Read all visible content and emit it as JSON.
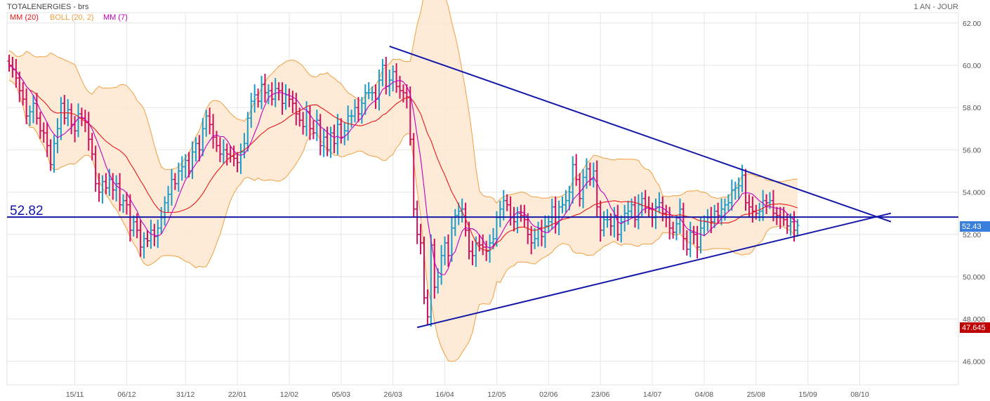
{
  "chart_data": {
    "type": "bar",
    "subtype": "ohlc",
    "title": "TOTALENERGIES - brs",
    "period_label": "1 AN - JOUR",
    "legend": [
      {
        "name": "MM (20)",
        "color": "#e8191a"
      },
      {
        "name": "BOLL (20, 2)",
        "color": "#f0a040"
      },
      {
        "name": "MM (7)",
        "color": "#c000c0"
      }
    ],
    "legend_placement": "top-left",
    "ylim": [
      45,
      63
    ],
    "y_ticks": [
      "46.000",
      "48.000",
      "50.000",
      "52.00",
      "54.000",
      "56.00",
      "58.00",
      "60.00",
      "62.00"
    ],
    "y_tick_values": [
      46,
      48,
      50,
      52,
      54,
      56,
      58,
      60,
      62
    ],
    "x_ticks": [
      "15/11",
      "06/12",
      "31/12",
      "22/01",
      "12/02",
      "05/03",
      "26/03",
      "16/04",
      "12/05",
      "02/06",
      "23/06",
      "14/07",
      "04/08",
      "25/08",
      "15/09",
      "08/10"
    ],
    "x_tick_index": [
      19,
      34,
      51,
      66,
      81,
      96,
      111,
      126,
      141,
      156,
      171,
      186,
      201,
      216,
      231,
      246
    ],
    "grid": true,
    "colors": {
      "up": "#1a9bc8",
      "down": "#cc1060",
      "trend": "#1418a8",
      "band_fill": "#fde8d0"
    },
    "price_levels": [
      {
        "label": "52.82",
        "value": 52.82
      },
      {
        "label": "52.43",
        "value": 52.43,
        "color": "#3a7fdc"
      },
      {
        "label": "47.645",
        "value": 47.645,
        "color": "#c00000"
      }
    ],
    "trendlines": [
      {
        "from": [
          110,
          60.9
        ],
        "to": [
          255,
          52.6
        ]
      },
      {
        "from": [
          118,
          47.6
        ],
        "to": [
          255,
          53.0
        ]
      }
    ],
    "series": [
      {
        "name": "close",
        "values": [
          60.0,
          59.8,
          59.4,
          58.8,
          58.4,
          57.6,
          57.8,
          58.2,
          57.5,
          56.9,
          56.8,
          56.2,
          55.3,
          56.3,
          57.0,
          58.2,
          57.5,
          57.9,
          57.2,
          56.9,
          57.7,
          57.5,
          57.3,
          56.5,
          55.8,
          54.4,
          54.0,
          54.5,
          54.2,
          54.6,
          54.1,
          54.4,
          53.4,
          53.6,
          53.4,
          52.2,
          52.6,
          52.2,
          51.4,
          51.8,
          51.7,
          52.2,
          51.9,
          52.3,
          52.8,
          53.5,
          53.9,
          54.6,
          54.4,
          55.0,
          55.2,
          55.5,
          55.0,
          55.9,
          56.3,
          56.0,
          57.0,
          57.6,
          57.2,
          56.6,
          56.2,
          55.8,
          56.0,
          55.8,
          55.7,
          55.6,
          55.4,
          55.9,
          56.3,
          57.5,
          58.3,
          58.6,
          58.3,
          59.1,
          58.7,
          58.8,
          58.4,
          58.9,
          58.8,
          58.2,
          58.6,
          58.4,
          58.2,
          57.7,
          57.4,
          57.1,
          57.8,
          57.0,
          56.8,
          57.4,
          56.2,
          56.6,
          56.0,
          56.8,
          56.3,
          57.2,
          56.6,
          56.9,
          57.6,
          57.6,
          58.0,
          57.7,
          58.2,
          58.7,
          58.7,
          58.7,
          58.4,
          59.3,
          60.0,
          59.0,
          59.3,
          59.7,
          59.0,
          58.8,
          58.7,
          58.5,
          56.5,
          53.2,
          52.0,
          51.6,
          49.0,
          48.1,
          51.5,
          49.5,
          50.0,
          51.0,
          51.6,
          51.0,
          52.3,
          52.9,
          53.1,
          53.2,
          52.2,
          51.2,
          51.0,
          51.6,
          51.5,
          51.4,
          51.2,
          51.6,
          51.8,
          52.8,
          53.2,
          53.6,
          53.4,
          52.8,
          52.6,
          53.0,
          52.9,
          52.7,
          52.0,
          51.6,
          51.8,
          52.3,
          51.9,
          52.4,
          52.6,
          53.3,
          52.5,
          53.3,
          53.4,
          53.6,
          54.0,
          55.3,
          54.6,
          53.7,
          54.7,
          55.1,
          54.6,
          55.0,
          53.3,
          52.2,
          52.7,
          52.7,
          52.4,
          52.9,
          52.0,
          52.6,
          53.0,
          53.1,
          53.4,
          52.7,
          53.4,
          53.7,
          53.3,
          53.2,
          52.8,
          53.3,
          53.5,
          53.0,
          52.8,
          52.3,
          52.1,
          52.5,
          53.2,
          51.8,
          51.3,
          52.1,
          52.0,
          51.4,
          52.3,
          52.6,
          52.8,
          52.6,
          53.1,
          52.9,
          53.2,
          53.4,
          53.5,
          54.1,
          54.2,
          54.3,
          54.8,
          53.5,
          53.3,
          53.1,
          53.0,
          53.1,
          53.6,
          53.5,
          53.6,
          53.0,
          52.9,
          52.8,
          52.7,
          52.4,
          52.6,
          52.2,
          52.43
        ]
      }
    ]
  }
}
